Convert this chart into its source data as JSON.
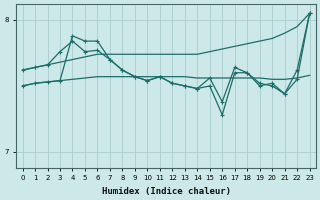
{
  "xlabel": "Humidex (Indice chaleur)",
  "bg_color": "#cce8e8",
  "line_color": "#1a6e6a",
  "grid_color": "#aacccc",
  "xlim": [
    -0.5,
    23.5
  ],
  "ylim": [
    6.88,
    8.12
  ],
  "yticks": [
    7.0,
    8.0
  ],
  "ytick_labels": [
    "7",
    "8"
  ],
  "xticks": [
    0,
    1,
    2,
    3,
    4,
    5,
    6,
    7,
    8,
    9,
    10,
    11,
    12,
    13,
    14,
    15,
    16,
    17,
    18,
    19,
    20,
    21,
    22,
    23
  ],
  "series": [
    {
      "y": [
        7.62,
        7.64,
        7.66,
        7.68,
        7.7,
        7.72,
        7.74,
        7.74,
        7.74,
        7.74,
        7.74,
        7.74,
        7.74,
        7.74,
        7.74,
        7.76,
        7.78,
        7.8,
        7.82,
        7.84,
        7.86,
        7.9,
        7.95,
        8.05
      ],
      "marker": false,
      "lw": 0.9
    },
    {
      "y": [
        7.5,
        7.52,
        7.53,
        7.54,
        7.55,
        7.56,
        7.57,
        7.57,
        7.57,
        7.57,
        7.57,
        7.57,
        7.57,
        7.57,
        7.56,
        7.56,
        7.56,
        7.56,
        7.56,
        7.56,
        7.55,
        7.55,
        7.56,
        7.58
      ],
      "marker": false,
      "lw": 0.9
    },
    {
      "y": [
        7.62,
        7.64,
        7.66,
        7.76,
        7.84,
        7.76,
        7.77,
        7.7,
        7.62,
        7.57,
        7.54,
        7.57,
        7.52,
        7.5,
        7.48,
        7.56,
        7.38,
        7.64,
        7.6,
        7.5,
        7.52,
        7.44,
        7.62,
        8.05
      ],
      "marker": true,
      "lw": 0.9
    },
    {
      "y": [
        7.5,
        7.52,
        7.53,
        7.54,
        7.88,
        7.84,
        7.84,
        7.7,
        7.62,
        7.57,
        7.54,
        7.57,
        7.52,
        7.5,
        7.48,
        7.5,
        7.28,
        7.6,
        7.6,
        7.52,
        7.5,
        7.44,
        7.55,
        8.05
      ],
      "marker": true,
      "lw": 0.9
    }
  ]
}
